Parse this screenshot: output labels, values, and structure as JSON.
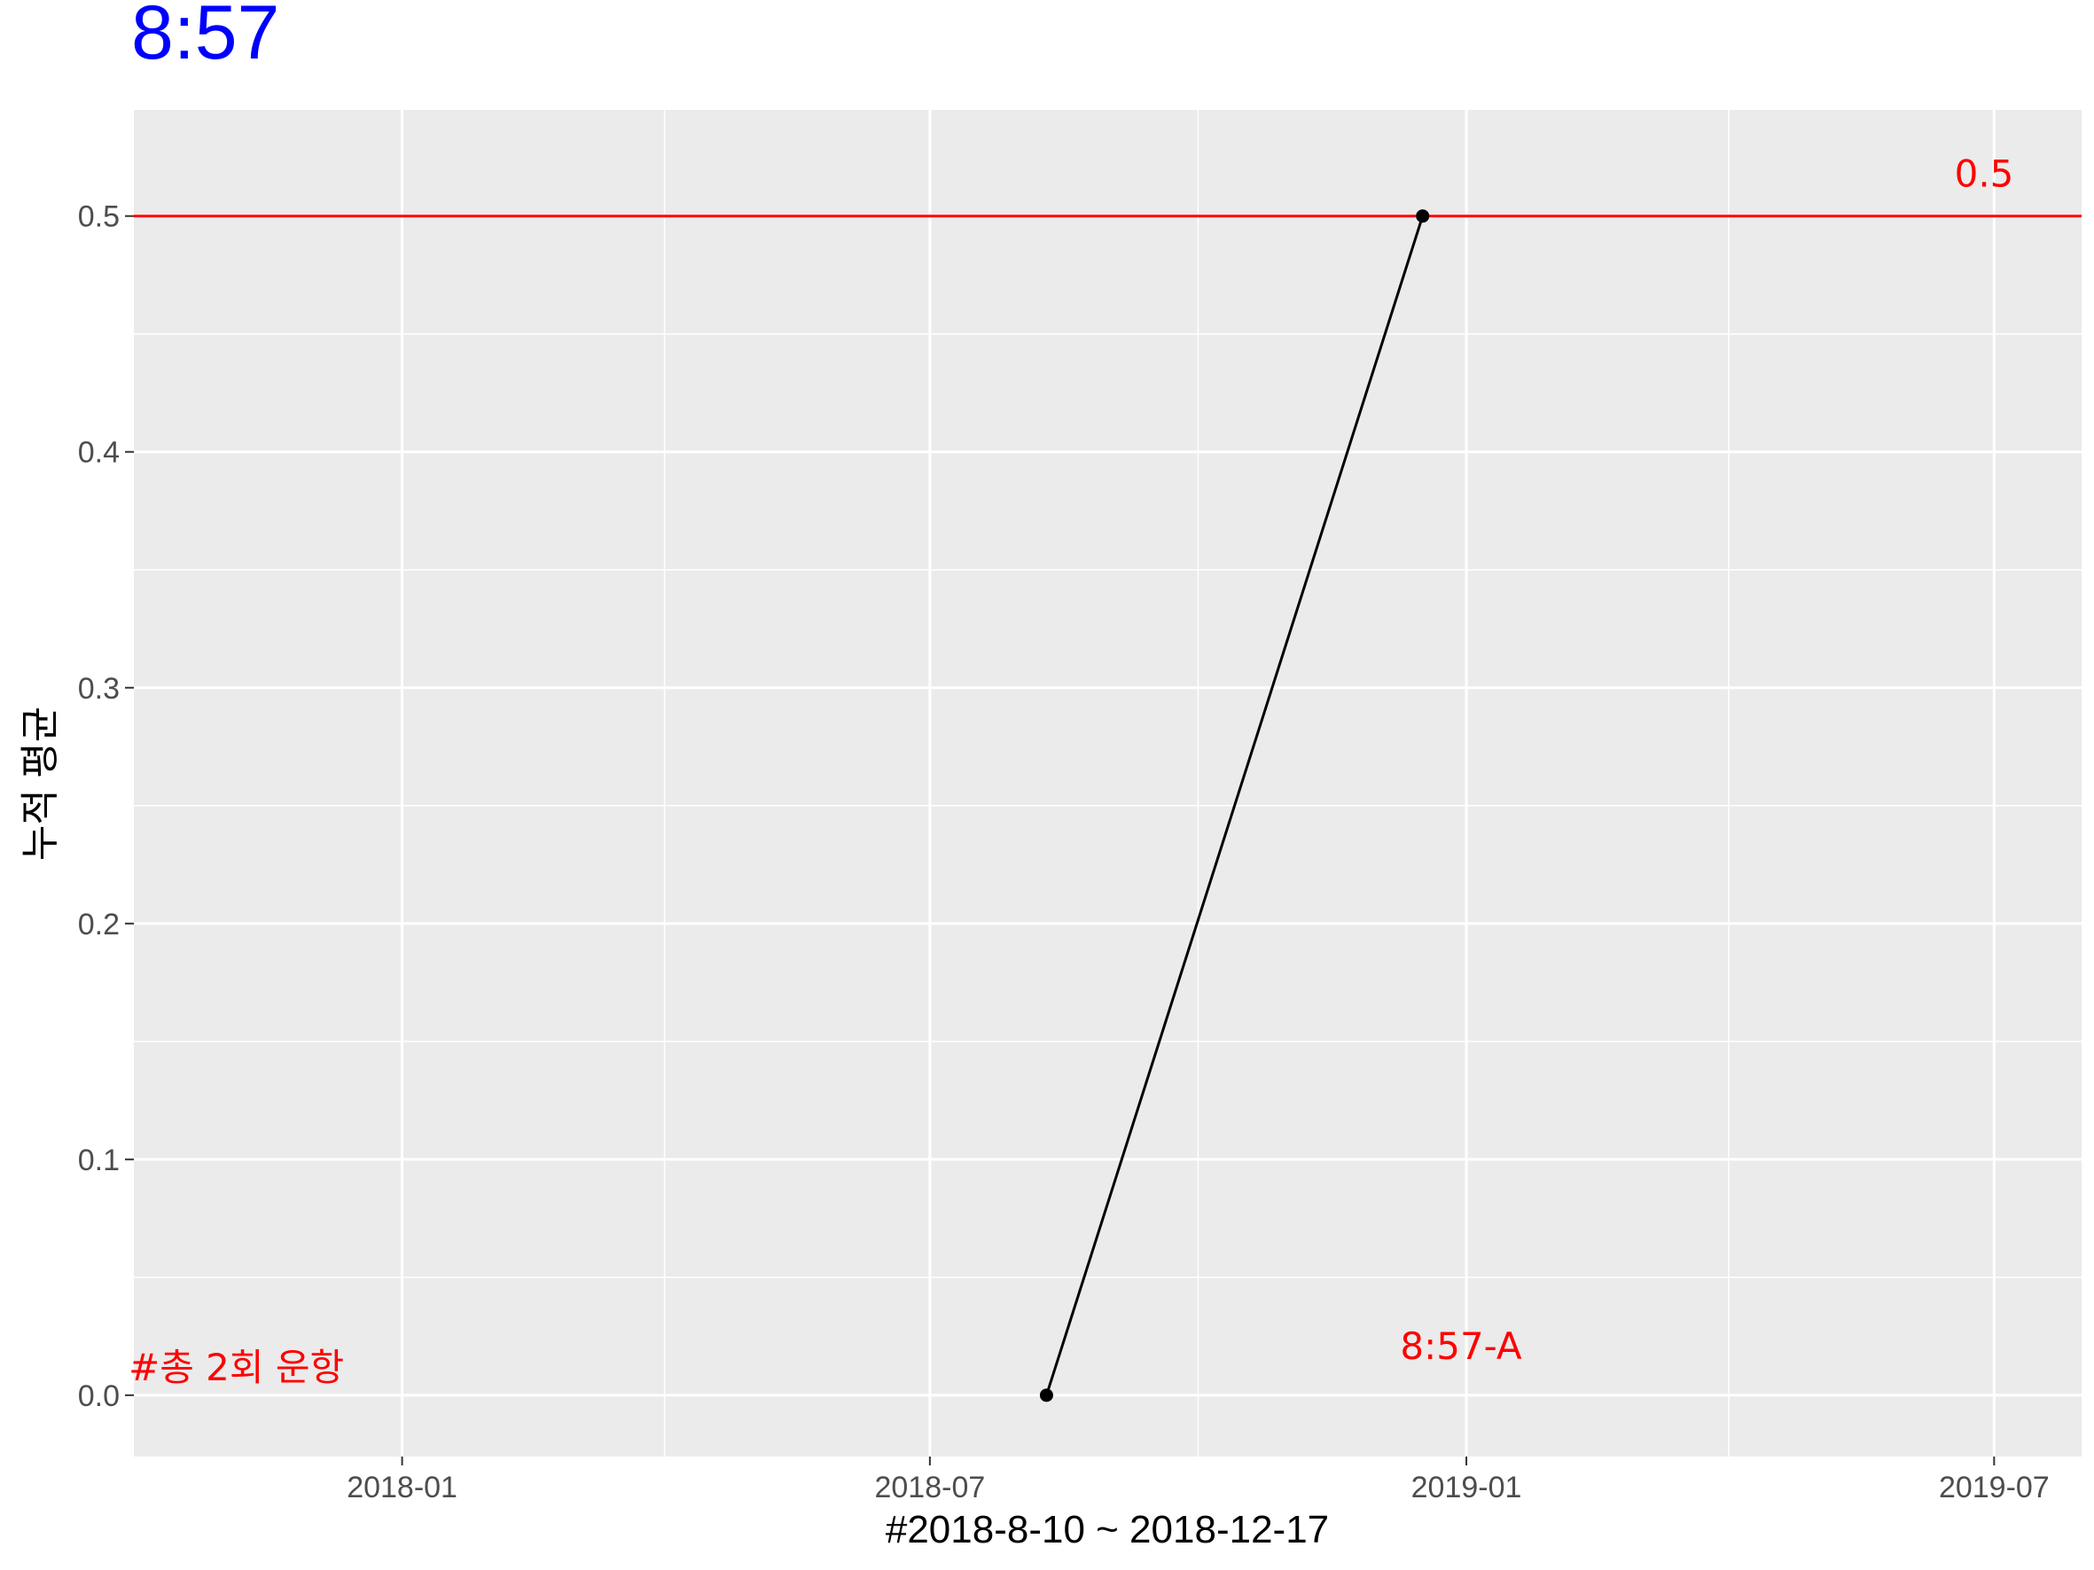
{
  "chart_data": {
    "type": "line",
    "title": "8:57",
    "xlabel": "#2018-8-10 ~ 2018-12-17",
    "ylabel": "누적 평균",
    "x_ticks": [
      "2018-01",
      "2018-07",
      "2019-01",
      "2019-07"
    ],
    "y_ticks": [
      "0.0",
      "0.1",
      "0.2",
      "0.3",
      "0.4",
      "0.5"
    ],
    "xlim": [
      "2017-10-01",
      "2019-07-31"
    ],
    "ylim": [
      -0.026,
      0.545
    ],
    "grid": true,
    "series": [
      {
        "x": [
          "2018-08-10",
          "2018-12-17"
        ],
        "y": [
          0.0,
          0.5
        ],
        "color": "#000000"
      }
    ],
    "reference_line": {
      "y": 0.5,
      "label": "0.5",
      "color": "#ff0000"
    },
    "annotations": [
      {
        "text": "#총 2회 운항",
        "color": "#ff0000"
      },
      {
        "text": "8:57-A",
        "color": "#ff0000"
      }
    ],
    "colors": {
      "title": "#0000ff",
      "panel": "#ebebeb",
      "grid": "#ffffff",
      "line": "#000000",
      "annotation": "#ff0000"
    }
  }
}
